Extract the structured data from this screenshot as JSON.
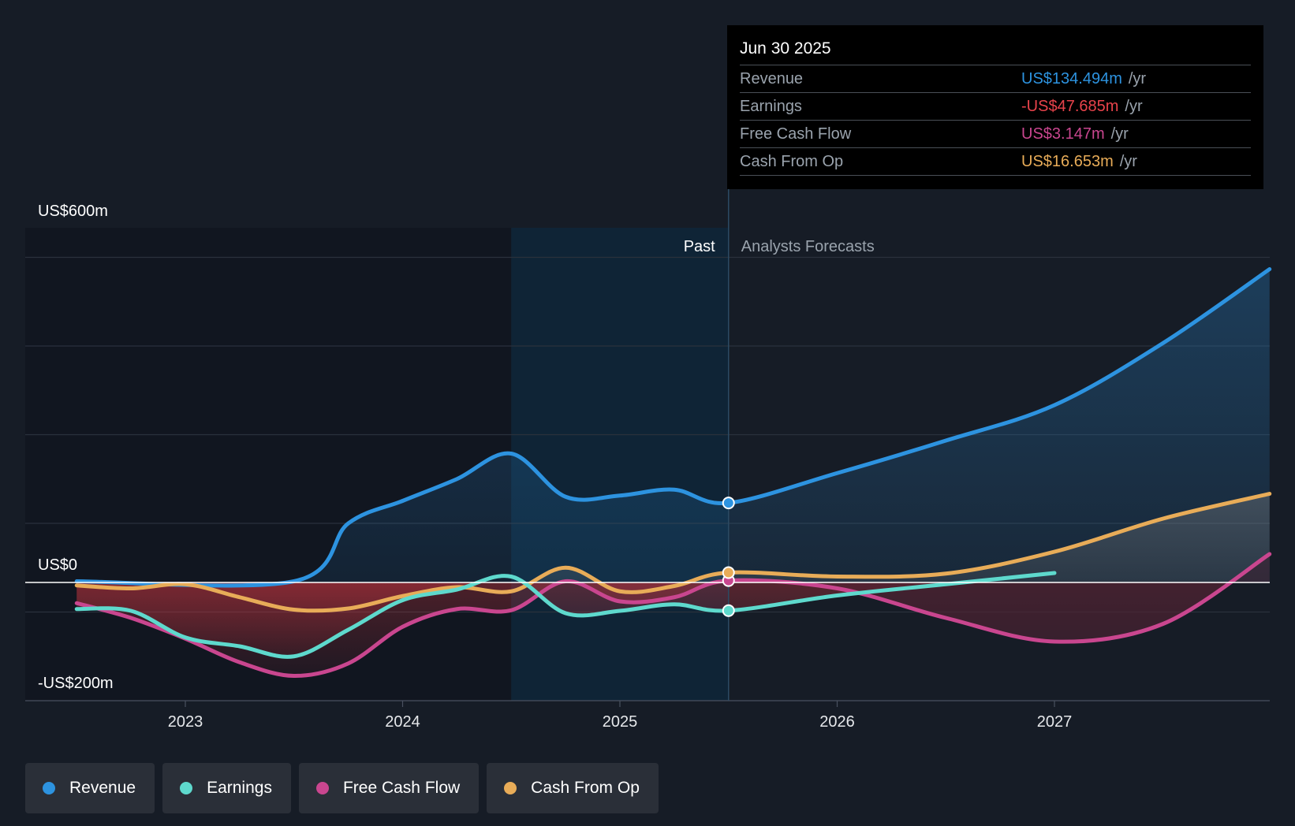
{
  "chart_data": {
    "type": "line",
    "y_axis": {
      "top_label": "US$600m",
      "zero_label": "US$0",
      "bottom_label": "-US$200m",
      "ylim": [
        -200,
        600
      ],
      "units": "US$m"
    },
    "x_axis": {
      "tick_labels": [
        "2023",
        "2024",
        "2025",
        "2026",
        "2027"
      ],
      "tick_values": [
        2023,
        2024,
        2025,
        2026,
        2027
      ],
      "xlim": [
        2022.27,
        2027.99
      ]
    },
    "regions": {
      "past_label": "Past",
      "forecast_label": "Analysts Forecasts",
      "divider_x": 2025.5,
      "highlight_start_x": 2024.5
    },
    "series": [
      {
        "name": "Revenue",
        "color": "#2d93e0",
        "fill": true,
        "x": [
          2022.5,
          2023.5,
          2023.75,
          2024.0,
          2024.25,
          2024.5,
          2024.75,
          2025.0,
          2025.25,
          2025.5,
          2026.0,
          2026.5,
          2027.0,
          2027.5,
          2027.99
        ],
        "y": [
          2,
          2,
          100,
          138,
          175,
          218,
          145,
          147,
          157,
          134.494,
          185,
          240,
          300,
          405,
          530
        ]
      },
      {
        "name": "Earnings",
        "color": "#5ed9cd",
        "fill": true,
        "x": [
          2022.5,
          2022.75,
          2023.0,
          2023.25,
          2023.5,
          2023.75,
          2024.0,
          2024.25,
          2024.5,
          2024.75,
          2025.0,
          2025.25,
          2025.5,
          2026.0,
          2026.5,
          2027.0
        ],
        "y": [
          -45,
          -48,
          -93,
          -108,
          -125,
          -80,
          -30,
          -12,
          10,
          -52,
          -48,
          -37,
          -47.685,
          -22,
          -3,
          16
        ]
      },
      {
        "name": "Free Cash Flow",
        "color": "#c9468f",
        "fill": true,
        "x": [
          2022.5,
          2022.75,
          2023.0,
          2023.25,
          2023.5,
          2023.75,
          2024.0,
          2024.25,
          2024.5,
          2024.75,
          2025.0,
          2025.25,
          2025.5,
          2026.0,
          2026.5,
          2027.0,
          2027.5,
          2027.99
        ],
        "y": [
          -35,
          -60,
          -95,
          -135,
          -158,
          -137,
          -75,
          -45,
          -47,
          2,
          -32,
          -25,
          3.147,
          -10,
          -60,
          -100,
          -70,
          48
        ]
      },
      {
        "name": "Cash From Op",
        "color": "#e8ac58",
        "fill": true,
        "x": [
          2022.5,
          2022.75,
          2023.0,
          2023.25,
          2023.5,
          2023.75,
          2024.0,
          2024.25,
          2024.5,
          2024.75,
          2025.0,
          2025.25,
          2025.5,
          2026.0,
          2026.5,
          2027.0,
          2027.5,
          2027.99
        ],
        "y": [
          -5,
          -10,
          -3,
          -25,
          -46,
          -44,
          -23,
          -8,
          -15,
          25,
          -15,
          -6,
          16.653,
          10,
          15,
          52,
          108,
          150
        ]
      }
    ],
    "highlight_x": 2025.5
  },
  "tooltip": {
    "date": "Jun 30 2025",
    "rows": [
      {
        "name": "Revenue",
        "value": "US$134.494m",
        "unit": "/yr",
        "color": "#2d93e0"
      },
      {
        "name": "Earnings",
        "value": "-US$47.685m",
        "unit": "/yr",
        "color": "#e8434b"
      },
      {
        "name": "Free Cash Flow",
        "value": "US$3.147m",
        "unit": "/yr",
        "color": "#c9468f"
      },
      {
        "name": "Cash From Op",
        "value": "US$16.653m",
        "unit": "/yr",
        "color": "#e8ac58"
      }
    ]
  },
  "legend": [
    {
      "label": "Revenue",
      "color": "#2d93e0"
    },
    {
      "label": "Earnings",
      "color": "#5ed9cd"
    },
    {
      "label": "Free Cash Flow",
      "color": "#c9468f"
    },
    {
      "label": "Cash From Op",
      "color": "#e8ac58"
    }
  ]
}
